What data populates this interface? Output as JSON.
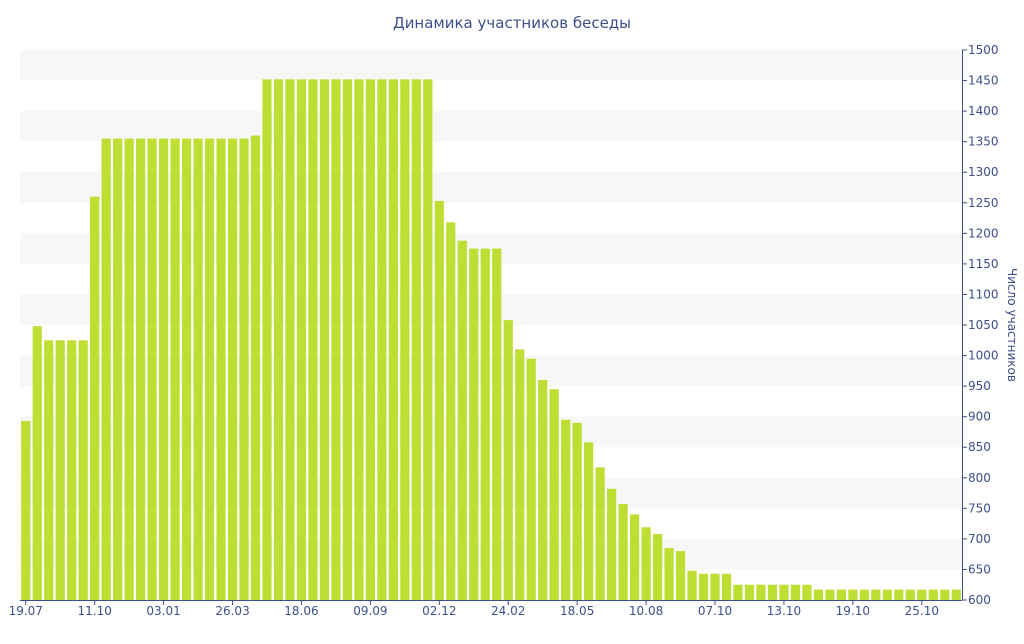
{
  "chart_data": {
    "type": "bar",
    "title": "Динамика участников беседы",
    "xlabel": "",
    "ylabel": "Число участников",
    "ylim": [
      600,
      1500
    ],
    "y_ticks": [
      600,
      650,
      700,
      750,
      800,
      850,
      900,
      950,
      1000,
      1050,
      1100,
      1150,
      1200,
      1250,
      1300,
      1350,
      1400,
      1450,
      1500
    ],
    "y_axis_position": "right",
    "grid": "alternating horizontal bands",
    "legend": "none",
    "x_tick_labels": [
      "19.07",
      "11.10",
      "03.01",
      "26.03",
      "18.06",
      "09.09",
      "02.12",
      "24.02",
      "18.05",
      "10.08",
      "07.10",
      "13.10",
      "19.10",
      "25.10"
    ],
    "x_tick_bar_index": [
      0,
      6,
      12,
      18,
      24,
      30,
      36,
      42,
      48,
      54,
      60,
      66,
      72,
      78
    ],
    "values": [
      893,
      1048,
      1025,
      1025,
      1025,
      1025,
      1260,
      1355,
      1355,
      1355,
      1355,
      1355,
      1355,
      1355,
      1355,
      1355,
      1355,
      1355,
      1355,
      1355,
      1360,
      1452,
      1452,
      1452,
      1452,
      1452,
      1452,
      1452,
      1452,
      1452,
      1452,
      1452,
      1452,
      1452,
      1452,
      1452,
      1253,
      1218,
      1188,
      1175,
      1175,
      1175,
      1058,
      1010,
      995,
      960,
      945,
      895,
      890,
      858,
      817,
      782,
      757,
      740,
      719,
      708,
      685,
      680,
      648,
      643,
      643,
      643,
      625,
      625,
      625,
      625,
      625,
      625,
      625,
      617,
      617,
      617,
      617,
      617,
      617,
      617,
      617,
      617,
      617,
      617,
      617,
      617
    ]
  },
  "colors": {
    "bar": "#bede33",
    "band": "#f7f7f7",
    "axis_text": "#3d4f8a",
    "title": "#3d4f8a"
  }
}
